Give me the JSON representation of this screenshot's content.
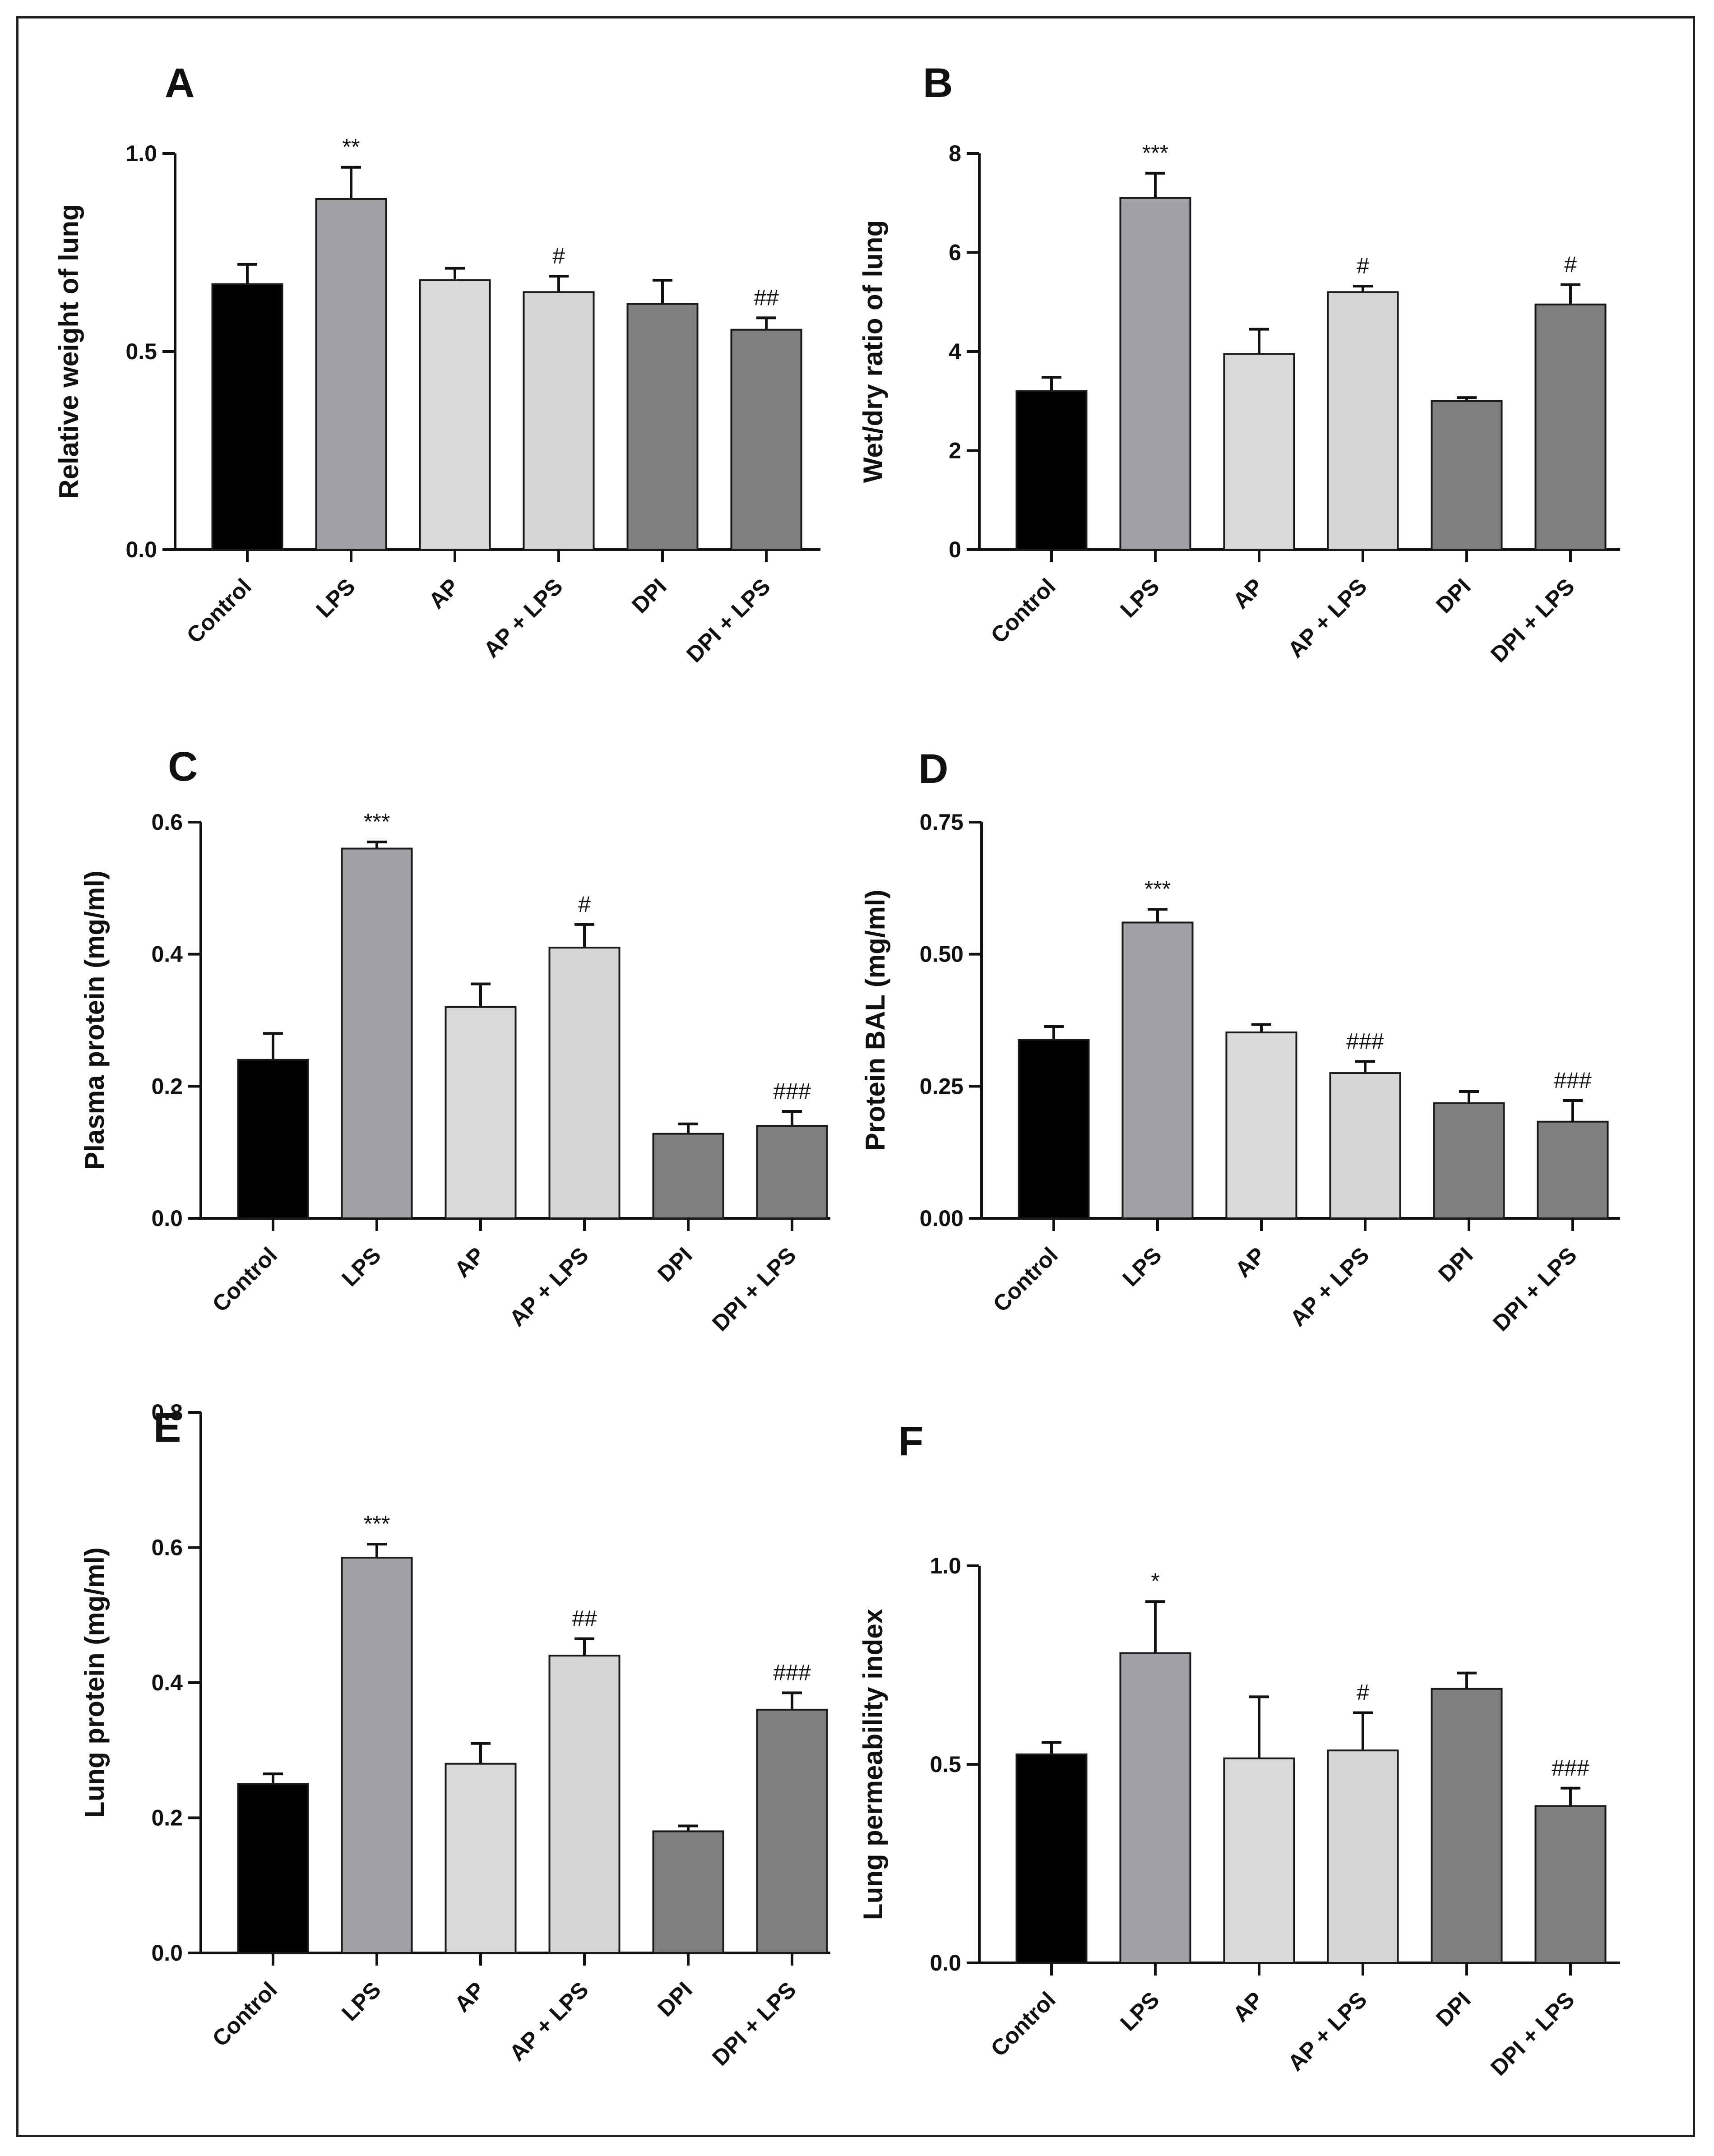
{
  "colors": {
    "Control": "#000000",
    "LPS": "#a2a1a6",
    "AP": "#d9d9d9",
    "AP + LPS": "#d6d6d6",
    "DPI": "#7f7f7f",
    "DPI + LPS": "#7f7f7f",
    "outline": "#1a1a1a"
  },
  "chart_data": [
    {
      "type": "bar",
      "letter": "A",
      "ylabel": "Relative weight of lung",
      "categories": [
        "Control",
        "LPS",
        "AP",
        "AP + LPS",
        "DPI",
        "DPI + LPS"
      ],
      "values": [
        0.67,
        0.885,
        0.68,
        0.65,
        0.62,
        0.555
      ],
      "errors": [
        0.05,
        0.08,
        0.03,
        0.04,
        0.06,
        0.03
      ],
      "significance": [
        "",
        "**",
        "",
        "#",
        "",
        "##"
      ],
      "ylim": [
        0,
        1.0
      ],
      "yticks": [
        "0.0",
        "0.5",
        "1.0"
      ]
    },
    {
      "type": "bar",
      "letter": "B",
      "ylabel": "Wet/dry ratio of lung",
      "categories": [
        "Control",
        "LPS",
        "AP",
        "AP + LPS",
        "DPI",
        "DPI + LPS"
      ],
      "values": [
        3.2,
        7.1,
        3.95,
        5.2,
        3.0,
        4.95
      ],
      "errors": [
        0.28,
        0.5,
        0.5,
        0.12,
        0.07,
        0.4
      ],
      "significance": [
        "",
        "***",
        "",
        "#",
        "",
        "#"
      ],
      "ylim": [
        0,
        8
      ],
      "yticks": [
        "0",
        "2",
        "4",
        "6",
        "8"
      ]
    },
    {
      "type": "bar",
      "letter": "C",
      "ylabel": "Plasma protein (mg/ml)",
      "categories": [
        "Control",
        "LPS",
        "AP",
        "AP + LPS",
        "DPI",
        "DPI + LPS"
      ],
      "values": [
        0.24,
        0.56,
        0.32,
        0.41,
        0.128,
        0.14
      ],
      "errors": [
        0.04,
        0.01,
        0.035,
        0.035,
        0.015,
        0.022
      ],
      "significance": [
        "",
        "***",
        "",
        "#",
        "",
        "###"
      ],
      "ylim": [
        0,
        0.6
      ],
      "yticks": [
        "0.0",
        "0.2",
        "0.4",
        "0.6"
      ]
    },
    {
      "type": "bar",
      "letter": "D",
      "ylabel": "Protein BAL (mg/ml)",
      "categories": [
        "Control",
        "LPS",
        "AP",
        "AP + LPS",
        "DPI",
        "DPI + LPS"
      ],
      "values": [
        0.338,
        0.56,
        0.352,
        0.275,
        0.218,
        0.183
      ],
      "errors": [
        0.025,
        0.025,
        0.015,
        0.022,
        0.022,
        0.04
      ],
      "significance": [
        "",
        "***",
        "",
        "###",
        "",
        "###"
      ],
      "ylim": [
        0,
        0.75
      ],
      "yticks": [
        "0.00",
        "0.25",
        "0.50",
        "0.75"
      ]
    },
    {
      "type": "bar",
      "letter": "E",
      "ylabel": "Lung protein (mg/ml)",
      "categories": [
        "Control",
        "LPS",
        "AP",
        "AP + LPS",
        "DPI",
        "DPI + LPS"
      ],
      "values": [
        0.25,
        0.585,
        0.28,
        0.44,
        0.18,
        0.36
      ],
      "errors": [
        0.015,
        0.02,
        0.03,
        0.025,
        0.008,
        0.025
      ],
      "significance": [
        "",
        "***",
        "",
        "##",
        "",
        "###"
      ],
      "ylim": [
        0,
        0.8
      ],
      "yticks": [
        "0.0",
        "0.2",
        "0.4",
        "0.6",
        "0.8"
      ]
    },
    {
      "type": "bar",
      "letter": "F",
      "ylabel": "Lung permeability index",
      "categories": [
        "Control",
        "LPS",
        "AP",
        "AP + LPS",
        "DPI",
        "DPI + LPS"
      ],
      "values": [
        0.525,
        0.78,
        0.515,
        0.535,
        0.69,
        0.395
      ],
      "errors": [
        0.03,
        0.13,
        0.155,
        0.095,
        0.04,
        0.045
      ],
      "significance": [
        "",
        "*",
        "",
        "#",
        "",
        "###"
      ],
      "ylim": [
        0,
        1.0
      ],
      "yticks": [
        "0.0",
        "0.5",
        "1.0"
      ]
    }
  ]
}
